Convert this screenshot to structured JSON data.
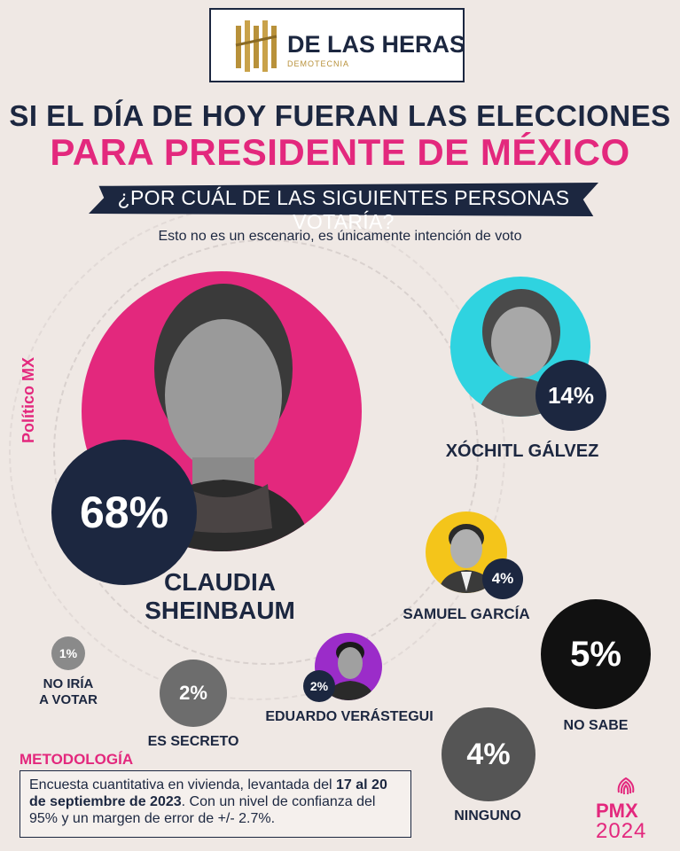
{
  "header": {
    "logo_name": "DE LAS HERAS",
    "logo_sub": "DEMOTECNIA",
    "title_line1": "SI EL DÍA DE HOY FUERAN LAS ELECCIONES",
    "title_line2": "PARA PRESIDENTE DE MÉXICO",
    "question": "¿POR CUÁL DE LAS SIGUIENTES PERSONAS VOTARÍA?",
    "note": "Esto no es un escenario, es únicamente intención de voto"
  },
  "side_label": "Político MX",
  "results": {
    "sheinbaum": {
      "name_line1": "CLAUDIA",
      "name_line2": "SHEINBAUM",
      "pct": "68%",
      "value": 68
    },
    "galvez": {
      "name": "XÓCHITL GÁLVEZ",
      "pct": "14%",
      "value": 14
    },
    "garcia": {
      "name": "SAMUEL GARCÍA",
      "pct": "4%",
      "value": 4
    },
    "no_sabe": {
      "name": "NO SABE",
      "pct": "5%",
      "value": 5
    },
    "verastegui": {
      "name": "EDUARDO VERÁSTEGUI",
      "pct": "2%",
      "value": 2
    },
    "secreto": {
      "name": "ES SECRETO",
      "pct": "2%",
      "value": 2
    },
    "no_votar": {
      "name_line1": "NO IRÍA",
      "name_line2": "A VOTAR",
      "pct": "1%",
      "value": 1
    },
    "ninguno": {
      "name": "NINGUNO",
      "pct": "4%",
      "value": 4
    }
  },
  "methodology": {
    "title": "METODOLOGÍA",
    "text_a": "Encuesta cuantitativa en vivienda, levantada del",
    "text_bold": "17 al 20 de septiembre de 2023",
    "text_b": ". Con un nivel de confianza del 95% y un margen de error de +/- 2.7%."
  },
  "footer": {
    "brand": "PMX",
    "year": "2024"
  },
  "colors": {
    "navy": "#1c2740",
    "pink": "#e3287d",
    "cyan": "#2fd3e0",
    "yellow": "#f4c51a",
    "purple": "#9b2cc9",
    "gray": "#6d6d6d",
    "black": "#111111",
    "background": "#efe8e4"
  }
}
